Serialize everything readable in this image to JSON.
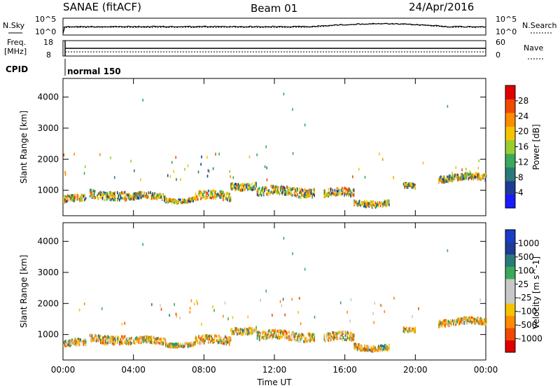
{
  "header": {
    "station": "SANAE (fitACF)",
    "beam": "Beam 01",
    "date": "24/Apr/2016"
  },
  "top_panels": {
    "nsky_label": "N.Sky",
    "nsearch_label": "N.Search",
    "log_tick_top": "10^5",
    "log_tick_bottom": "10^0",
    "freq_label_1": "Freq.",
    "freq_label_2": "[MHz]",
    "freq_ticks": [
      "18",
      "8"
    ],
    "nave_label": "Nave",
    "nave_ticks": [
      "60",
      "0"
    ],
    "cpid_label": "CPID",
    "cpid_mode": "normal 150"
  },
  "chart_data": [
    {
      "type": "heatmap",
      "name": "power",
      "ylabel": "Slant Range [km]",
      "ylim": [
        180,
        4600
      ],
      "yticks": [
        1000,
        2000,
        3000,
        4000
      ],
      "xlim": [
        0,
        24
      ],
      "colorbar": {
        "label": "Power [dB]",
        "ticks": [
          "4",
          "8",
          "12",
          "16",
          "20",
          "24",
          "28"
        ],
        "colors": [
          "#1a1aff",
          "#1e3c96",
          "#2a7a7a",
          "#3aaa5a",
          "#9acd32",
          "#f5c400",
          "#ff8c00",
          "#f04a00",
          "#e00000"
        ]
      },
      "echo_bands": [
        {
          "t0": 0.0,
          "t1": 1.3,
          "r": 700,
          "w": 200
        },
        {
          "t0": 1.5,
          "t1": 3.5,
          "r": 860,
          "w": 260
        },
        {
          "t0": 3.5,
          "t1": 5.8,
          "r": 780,
          "w": 200
        },
        {
          "t0": 5.8,
          "t1": 7.5,
          "r": 700,
          "w": 120
        },
        {
          "t0": 7.5,
          "t1": 9.5,
          "r": 800,
          "w": 260
        },
        {
          "t0": 9.5,
          "t1": 11.0,
          "r": 1150,
          "w": 200
        },
        {
          "t0": 11.0,
          "t1": 14.3,
          "r": 950,
          "w": 260
        },
        {
          "t0": 14.8,
          "t1": 16.5,
          "r": 900,
          "w": 250
        },
        {
          "t0": 16.5,
          "t1": 18.5,
          "r": 600,
          "w": 180
        },
        {
          "t0": 19.3,
          "t1": 20.0,
          "r": 1100,
          "w": 150
        },
        {
          "t0": 21.3,
          "t1": 24.0,
          "r": 1400,
          "w": 200
        }
      ]
    },
    {
      "type": "heatmap",
      "name": "velocity",
      "xlabel": "Time UT",
      "ylabel": "Slant Range [km]",
      "ylim": [
        180,
        4600
      ],
      "yticks": [
        1000,
        2000,
        3000,
        4000
      ],
      "xlim": [
        0,
        24
      ],
      "xticks": [
        "00:00",
        "04:00",
        "08:00",
        "12:00",
        "16:00",
        "20:00",
        "00:00"
      ],
      "colorbar": {
        "label": "Velocity [m s^-1]",
        "ticks": [
          "-1000",
          "-500",
          "-100",
          "-25",
          "25",
          "100",
          "500",
          "1000"
        ],
        "colors": [
          "#e00000",
          "#f04a00",
          "#ff8c00",
          "#f5c400",
          "#c8c8c8",
          "#c8c8c8",
          "#3aaa5a",
          "#2a7a7a",
          "#1e3c96",
          "#1a3cc8"
        ]
      }
    }
  ]
}
